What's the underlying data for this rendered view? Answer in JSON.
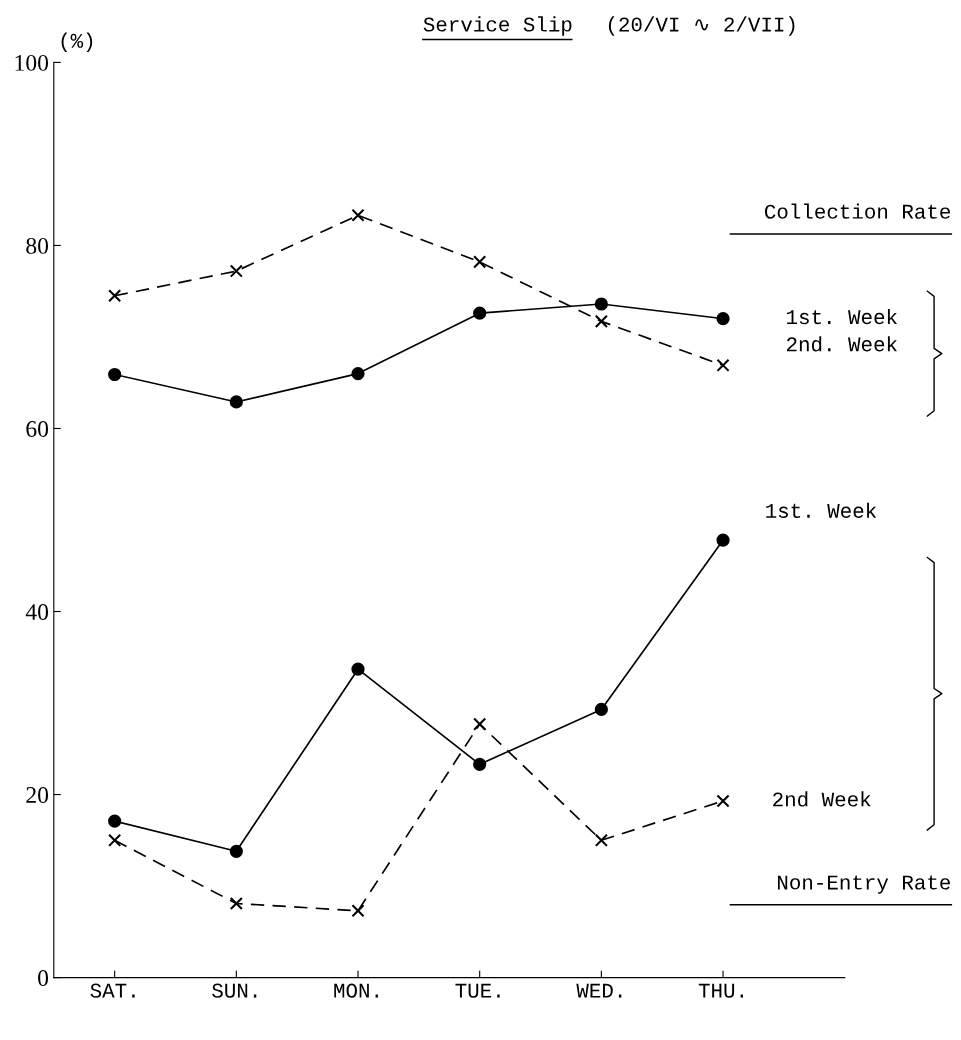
{
  "chart_data": {
    "type": "line",
    "title": "Service Slip",
    "subtitle": "(20/VI ∿ 2/VII)",
    "ylabel": "(%)",
    "categories": [
      "SAT.",
      "SUN.",
      "MON.",
      "TUE.",
      "WED.",
      "THU."
    ],
    "ylim": [
      0,
      100
    ],
    "yticks": [
      0,
      20,
      40,
      60,
      80,
      100
    ],
    "grid": false,
    "legend": false,
    "series": [
      {
        "name": "1st. Week",
        "color": "#000000",
        "marker": "circle",
        "line_style": "solid",
        "values": [
          65.9,
          62.9,
          66.0,
          72.6,
          73.6,
          72.0
        ]
      },
      {
        "name": "2nd. Week",
        "color": "#000000",
        "marker": "cross",
        "line_style": "dashed",
        "values": [
          74.5,
          77.2,
          83.3,
          78.2,
          71.7,
          66.9
        ]
      },
      {
        "name": "1st. Week",
        "color": "#000000",
        "marker": "circle",
        "line_style": "solid",
        "values": [
          17.1,
          13.8,
          33.7,
          23.3,
          29.3,
          47.8
        ]
      },
      {
        "name": "2nd Week",
        "color": "#000000",
        "marker": "cross",
        "line_style": "dashed",
        "values": [
          15.0,
          8.1,
          7.3,
          27.7,
          15.0,
          19.3
        ]
      }
    ],
    "annotations": [
      "Collection Rate",
      "Non-Entry Rate"
    ]
  }
}
